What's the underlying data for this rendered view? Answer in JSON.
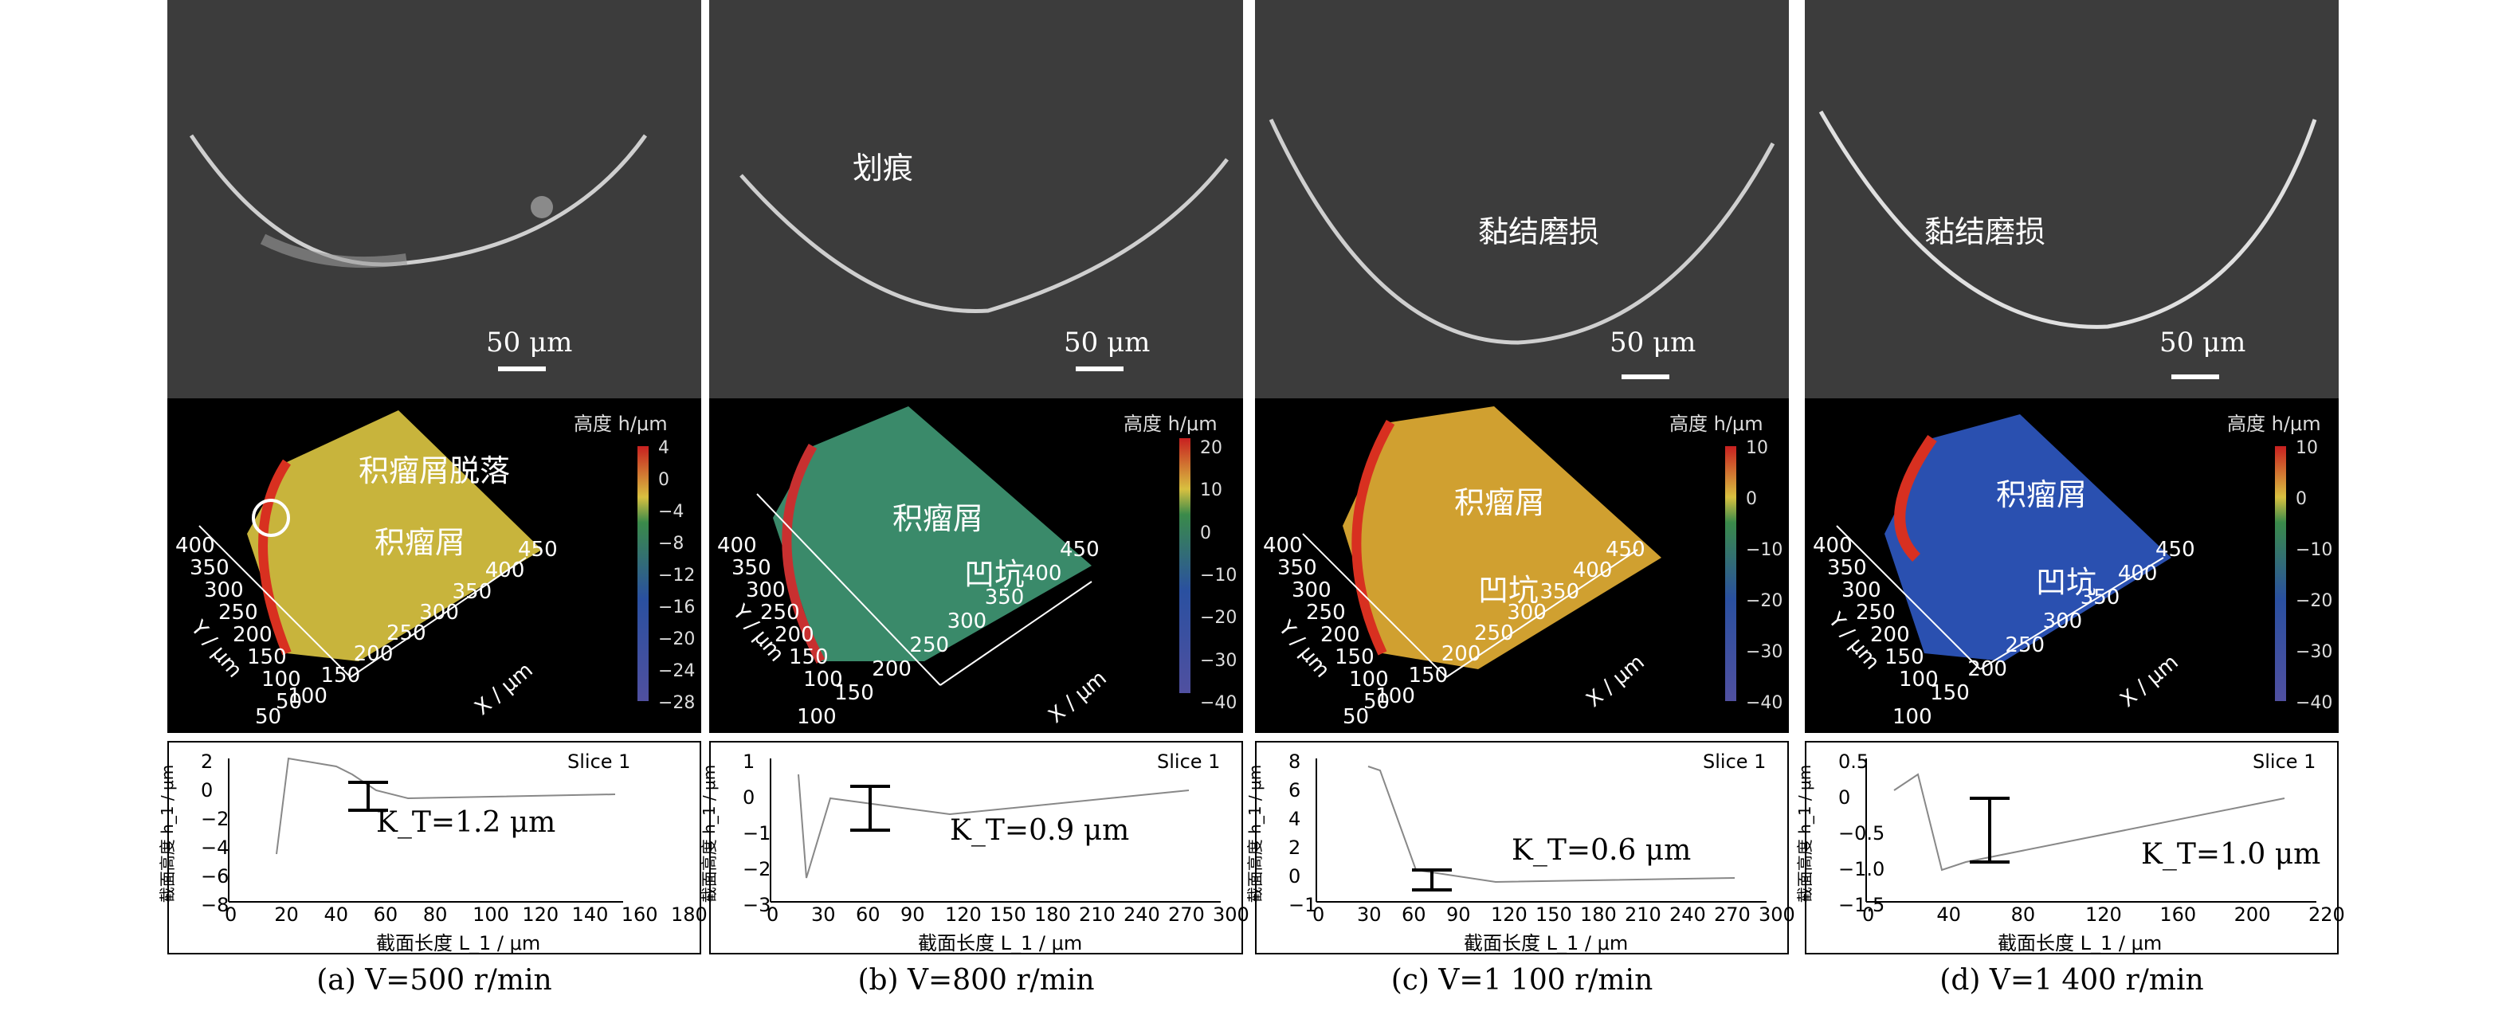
{
  "panels": [
    {
      "caption": "(a) V=500 r/min",
      "sem": {
        "scale": "50 μm",
        "labels": []
      },
      "cmap": {
        "labels": [
          "积瘤屑脱落",
          "积瘤屑"
        ],
        "cb_title": "高度 h/μm",
        "cb_ticks": [
          "4",
          "0",
          "−4",
          "−8",
          "−12",
          "−16",
          "−20",
          "−24",
          "−28"
        ],
        "x_ticks": [
          "50",
          "100",
          "150",
          "200",
          "250",
          "300",
          "350",
          "400",
          "450"
        ],
        "y_ticks": [
          "400",
          "350",
          "300",
          "250",
          "200",
          "150",
          "100",
          "50"
        ],
        "x_label": "X / μm",
        "y_label": "Y / μm"
      },
      "prof": {
        "legend": "Slice 1",
        "kt": "K_T=1.2 μm",
        "y_label": "截面高度 h_1 / μm",
        "x_label": "截面长度 L_1 / μm",
        "y_ticks": [
          "2",
          "0",
          "−2",
          "−4",
          "−6",
          "−8"
        ],
        "x_ticks": [
          "0",
          "20",
          "40",
          "60",
          "80",
          "100",
          "120",
          "140",
          "160",
          "180"
        ]
      }
    },
    {
      "caption": "(b) V=800 r/min",
      "sem": {
        "scale": "50 μm",
        "labels": [
          "划痕"
        ]
      },
      "cmap": {
        "labels": [
          "积瘤屑",
          "凹坑"
        ],
        "cb_title": "高度 h/μm",
        "cb_ticks": [
          "20",
          "10",
          "0",
          "−10",
          "−20",
          "−30",
          "−40"
        ],
        "x_ticks": [
          "100",
          "150",
          "200",
          "250",
          "300",
          "350",
          "400",
          "450"
        ],
        "y_ticks": [
          "400",
          "350",
          "300",
          "250",
          "200",
          "150",
          "100"
        ],
        "x_label": "X / μm",
        "y_label": "Y / μm"
      },
      "prof": {
        "legend": "Slice 1",
        "kt": "K_T=0.9 μm",
        "y_label": "截面高度 h_1 / μm",
        "x_label": "截面长度 L_1 / μm",
        "y_ticks": [
          "1",
          "0",
          "−1",
          "−2",
          "−3"
        ],
        "x_ticks": [
          "0",
          "30",
          "60",
          "90",
          "120",
          "150",
          "180",
          "210",
          "240",
          "270",
          "300"
        ]
      }
    },
    {
      "caption": "(c) V=1 100 r/min",
      "sem": {
        "scale": "50 μm",
        "labels": [
          "黏结磨损"
        ]
      },
      "cmap": {
        "labels": [
          "积瘤屑",
          "凹坑"
        ],
        "cb_title": "高度 h/μm",
        "cb_ticks": [
          "10",
          "0",
          "−10",
          "−20",
          "−30",
          "−40"
        ],
        "x_ticks": [
          "50",
          "100",
          "150",
          "200",
          "250",
          "300",
          "350",
          "400",
          "450"
        ],
        "y_ticks": [
          "400",
          "350",
          "300",
          "250",
          "200",
          "150",
          "100",
          "50"
        ],
        "x_label": "X / μm",
        "y_label": "Y / μm"
      },
      "prof": {
        "legend": "Slice 1",
        "kt": "K_T=0.6 μm",
        "y_label": "截面高度 h_1 / μm",
        "x_label": "截面长度 L_1 / μm",
        "y_ticks": [
          "8",
          "6",
          "4",
          "2",
          "0",
          "−1"
        ],
        "x_ticks": [
          "0",
          "30",
          "60",
          "90",
          "120",
          "150",
          "180",
          "210",
          "240",
          "270",
          "300"
        ]
      }
    },
    {
      "caption": "(d) V=1 400 r/min",
      "sem": {
        "scale": "50 μm",
        "labels": [
          "黏结磨损"
        ]
      },
      "cmap": {
        "labels": [
          "积瘤屑",
          "凹坑"
        ],
        "cb_title": "高度 h/μm",
        "cb_ticks": [
          "10",
          "0",
          "−10",
          "−20",
          "−30",
          "−40"
        ],
        "x_ticks": [
          "100",
          "150",
          "200",
          "250",
          "300",
          "350",
          "400",
          "450"
        ],
        "y_ticks": [
          "400",
          "350",
          "300",
          "250",
          "200",
          "150",
          "100"
        ],
        "x_label": "X / μm",
        "y_label": "Y / μm"
      },
      "prof": {
        "legend": "Slice 1",
        "kt": "K_T=1.0 μm",
        "y_label": "截面高度 h_1 / μm",
        "x_label": "截面长度 L_1 / μm",
        "y_ticks": [
          "0.5",
          "0",
          "−0.5",
          "−1.0",
          "−1.5"
        ],
        "x_ticks": [
          "0",
          "40",
          "80",
          "120",
          "160",
          "200",
          "220"
        ]
      }
    }
  ],
  "colors": {
    "sem_bg": "#3c3c3c",
    "surface_a": "#c8b43c",
    "surface_b": "#3a8a6a",
    "surface_c": "#d0a030",
    "surface_d": "#2a50b0",
    "edge": "#d83020"
  }
}
